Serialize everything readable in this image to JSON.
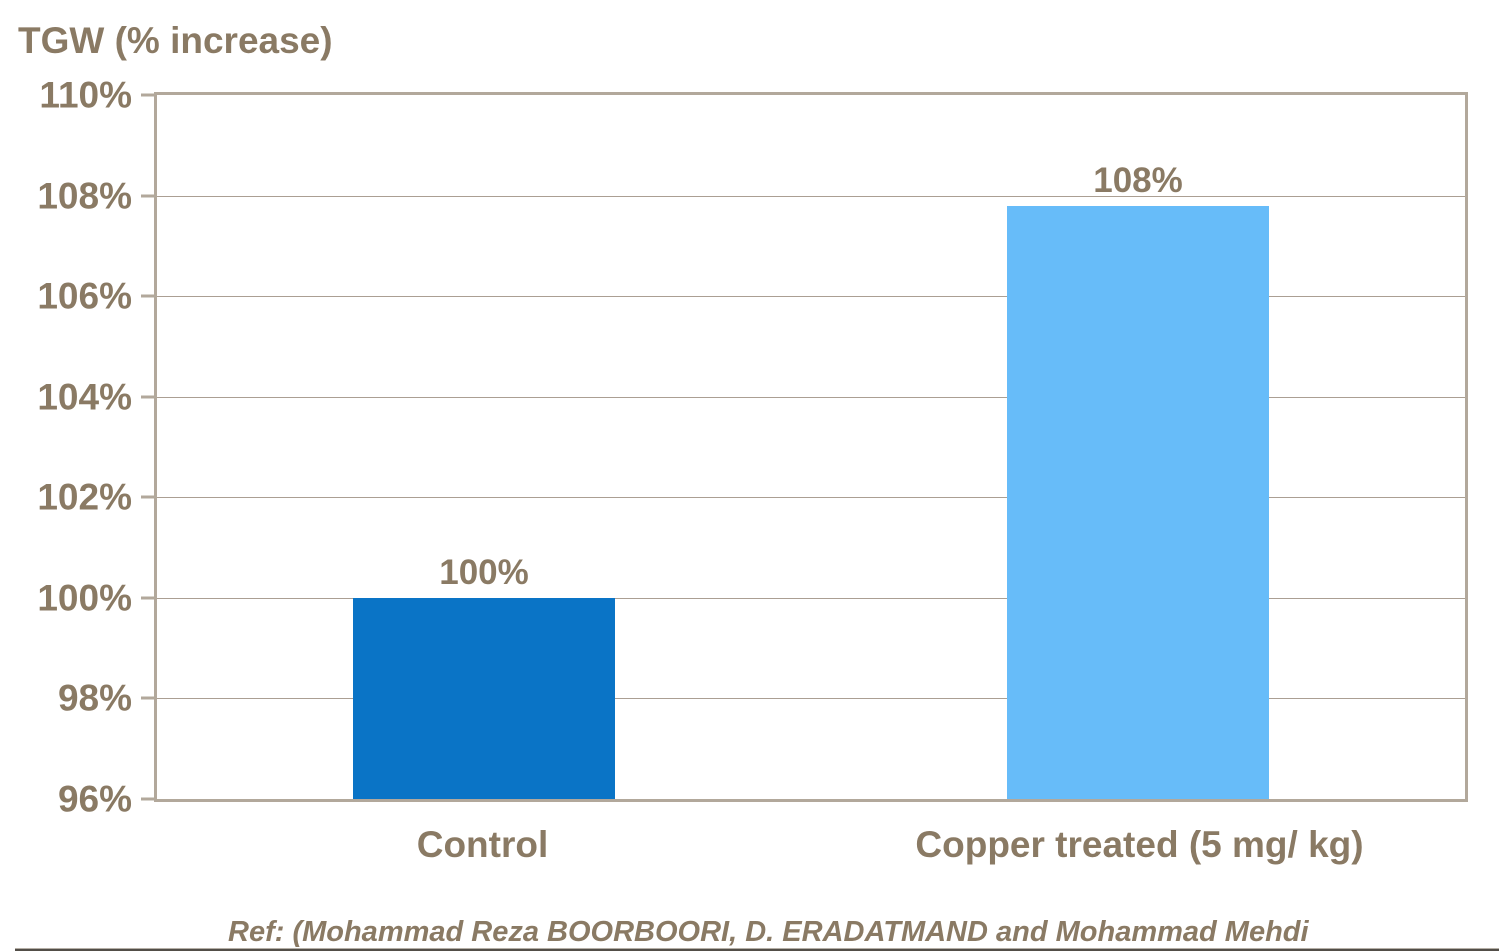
{
  "chart_data": {
    "type": "bar",
    "title": "TGW (% increase)",
    "categories": [
      "Control",
      "Copper treated (5 mg/ kg)"
    ],
    "values": [
      100,
      107.8
    ],
    "value_labels": [
      "100%",
      "108%"
    ],
    "bar_colors": [
      "#0a74c6",
      "#67bcf9"
    ],
    "ylim": [
      96,
      110
    ],
    "ytick_step": 2,
    "ytick_labels": [
      "110%",
      "108%",
      "106%",
      "104%",
      "102%",
      "100%",
      "98%",
      "96%"
    ],
    "grid": "horizontal-only",
    "legend": "none",
    "footnote": "Ref: (Mohammad Reza BOORBOORI, D. ERADATMAND and Mohammad Mehdi",
    "colors": {
      "axis_text": "#8a7a64",
      "plot_border": "#b2a89b",
      "gridline": "#ab9f93",
      "bar_control": "#0a74c6",
      "bar_copper": "#67bcf9",
      "bottom_rule": "#524e48",
      "background": "#ffffff"
    }
  }
}
